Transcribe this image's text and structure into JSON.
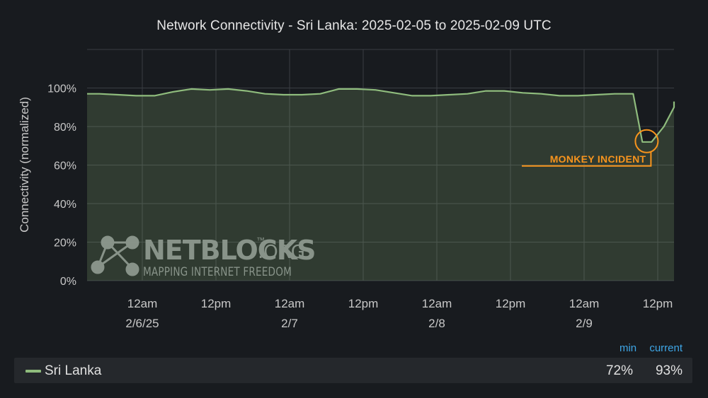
{
  "title": "Network Connectivity - Sri Lanka: 2025-02-05 to 2025-02-09 UTC",
  "chart_data": {
    "type": "area",
    "ylabel": "Connectivity (normalized)",
    "ylim": [
      0,
      120
    ],
    "yticks": [
      "0%",
      "20%",
      "40%",
      "60%",
      "80%",
      "100%"
    ],
    "ytick_values": [
      0,
      20,
      40,
      60,
      80,
      100
    ],
    "xlim_hours": [
      -16.5,
      63.5
    ],
    "xticks": [
      {
        "hour": 0,
        "label": "12am",
        "date": "2/6/25"
      },
      {
        "hour": 12,
        "label": "12pm",
        "date": ""
      },
      {
        "hour": 24,
        "label": "12am",
        "date": "2/7"
      },
      {
        "hour": 36,
        "label": "12pm",
        "date": ""
      },
      {
        "hour": 48,
        "label": "12am",
        "date": "2/8"
      },
      {
        "hour": 60,
        "label": "12pm",
        "date": ""
      },
      {
        "hour": 72,
        "label": "12am",
        "date": "2/9"
      },
      {
        "hour": 84,
        "label": "12pm",
        "date": ""
      }
    ],
    "grid": true,
    "series": [
      {
        "name": "Sri Lanka",
        "color": "#8fbc7d",
        "x": [
          -7,
          -4,
          -1,
          2,
          5,
          8,
          11,
          14,
          17,
          20,
          23,
          26,
          29,
          32,
          35,
          38,
          41,
          44,
          47,
          50,
          53,
          56,
          59,
          62,
          65,
          68,
          71,
          74,
          77,
          80,
          81.5,
          83,
          85,
          87,
          89,
          90
        ],
        "values": [
          97,
          96.5,
          96,
          96,
          98,
          99.5,
          99,
          99.5,
          98.5,
          97,
          96.5,
          96.5,
          97,
          99.5,
          99.5,
          99,
          97.5,
          96,
          96,
          96.5,
          97,
          98.5,
          98.5,
          97.5,
          97,
          96,
          96,
          96.5,
          97,
          97,
          72,
          72,
          80,
          90,
          91,
          93
        ]
      }
    ],
    "annotations": [
      {
        "text": "MONKEY INCIDENT",
        "x": 82.2,
        "y": 72
      }
    ]
  },
  "watermark": {
    "brand": "NETBLOCKS",
    "suffix": ".ORG",
    "tm": "™",
    "tagline": "MAPPING INTERNET FREEDOM"
  },
  "legend": {
    "columns": {
      "min": "min",
      "current": "current"
    },
    "series_name": "Sri Lanka",
    "min": "72%",
    "current": "93%",
    "color": "#8fbc7d"
  }
}
